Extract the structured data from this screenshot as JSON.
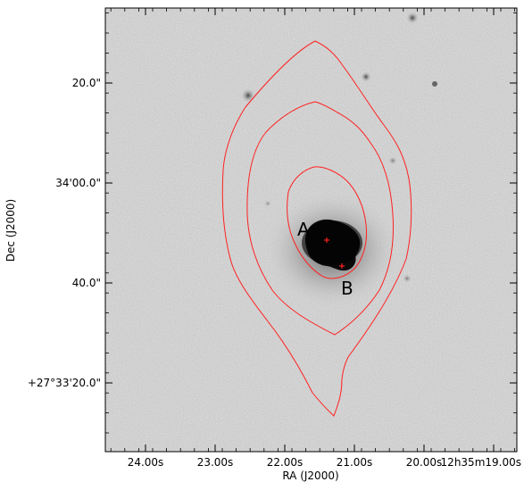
{
  "axes": {
    "xlabel": "RA (J2000)",
    "ylabel": "Dec (J2000)",
    "x_ticks": [
      "24.00s",
      "23.00s",
      "22.00s",
      "21.00s",
      "20.00s",
      "12h35m19.00s"
    ],
    "y_ticks": [
      "20.0\"",
      "34'00.0\"",
      "40.0\"",
      "+27°33'20.0\""
    ]
  },
  "sources": [
    {
      "label": "A"
    },
    {
      "label": "B"
    }
  ],
  "colors": {
    "contour": "#ff2020",
    "marker": "#ff2020",
    "background": "#c9c9c9"
  }
}
